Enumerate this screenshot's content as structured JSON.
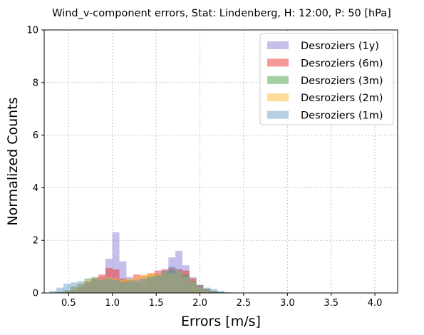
{
  "chart_data": {
    "type": "bar",
    "title": "Wind_v-component errors, Stat: Lindenberg, H: 12:00, P: 50 [hPa]",
    "xlabel": "Errors [m/s]",
    "ylabel": "Normalized Counts",
    "xlim": [
      0.22,
      4.26
    ],
    "ylim": [
      0,
      10
    ],
    "xticks": [
      "0.5",
      "1.0",
      "1.5",
      "2.0",
      "2.5",
      "3.0",
      "3.5",
      "4.0"
    ],
    "yticks": [
      "0",
      "2",
      "4",
      "6",
      "8",
      "10"
    ],
    "grid": true,
    "legend_position": "top-right",
    "bin_width": 0.08,
    "bin_starts": [
      0.28,
      0.36,
      0.44,
      0.52,
      0.6,
      0.68,
      0.76,
      0.84,
      0.92,
      1.0,
      1.08,
      1.16,
      1.24,
      1.32,
      1.4,
      1.48,
      1.56,
      1.64,
      1.72,
      1.8,
      1.88,
      1.96,
      2.04,
      2.12,
      2.2,
      2.28,
      2.36,
      2.44,
      2.52,
      2.6,
      2.68,
      2.76,
      2.84,
      2.92,
      3.0,
      3.08,
      3.16,
      3.24,
      3.32,
      3.4,
      3.48,
      3.56,
      3.64,
      3.72,
      3.8,
      3.88,
      3.96,
      4.04
    ],
    "series": [
      {
        "name": "Desroziers (1y)",
        "color": "#8b7fd9",
        "opacity": 0.5,
        "values": [
          0,
          0,
          0.05,
          0.1,
          0.2,
          0.35,
          0.5,
          0.6,
          1.3,
          2.3,
          1.2,
          0.6,
          0.4,
          0.35,
          0.5,
          0.7,
          0.85,
          1.35,
          1.6,
          1.05,
          0.6,
          0.3,
          0.15,
          0.08,
          0.03,
          0,
          0,
          0,
          0,
          0,
          0,
          0,
          0,
          0,
          0,
          0,
          0,
          0,
          0,
          0,
          0,
          0,
          0,
          0,
          0,
          0,
          0,
          0
        ]
      },
      {
        "name": "Desroziers (6m)",
        "color": "#f03030",
        "opacity": 0.5,
        "values": [
          0,
          0,
          0.05,
          0.1,
          0.25,
          0.45,
          0.55,
          0.7,
          0.95,
          0.9,
          0.55,
          0.5,
          0.7,
          0.65,
          0.75,
          0.85,
          0.9,
          0.95,
          0.9,
          0.85,
          0.55,
          0.3,
          0.15,
          0.05,
          0.02,
          0,
          0,
          0,
          0,
          0,
          0,
          0,
          0,
          0,
          0,
          0,
          0,
          0,
          0,
          0,
          0,
          0,
          0,
          0,
          0,
          0,
          0,
          0
        ]
      },
      {
        "name": "Desroziers (3m)",
        "color": "#4aa24a",
        "opacity": 0.5,
        "values": [
          0,
          0.05,
          0.1,
          0.25,
          0.35,
          0.55,
          0.6,
          0.5,
          0.55,
          0.5,
          0.45,
          0.5,
          0.4,
          0.55,
          0.65,
          0.7,
          0.8,
          0.85,
          0.8,
          0.7,
          0.45,
          0.25,
          0.15,
          0.08,
          0.03,
          0,
          0,
          0,
          0,
          0,
          0,
          0,
          0,
          0,
          0,
          0,
          0,
          0,
          0,
          0,
          0,
          0,
          0,
          0,
          0,
          0,
          0,
          0
        ]
      },
      {
        "name": "Desroziers (2m)",
        "color": "#ffb732",
        "opacity": 0.5,
        "values": [
          0,
          0.03,
          0.08,
          0.2,
          0.35,
          0.45,
          0.5,
          0.55,
          0.6,
          0.55,
          0.5,
          0.55,
          0.6,
          0.7,
          0.75,
          0.7,
          0.8,
          0.75,
          0.85,
          0.6,
          0.4,
          0.25,
          0.12,
          0.05,
          0.02,
          0,
          0,
          0,
          0,
          0,
          0,
          0,
          0,
          0,
          0,
          0,
          0,
          0,
          0,
          0,
          0,
          0,
          0,
          0,
          0,
          0,
          0,
          0
        ]
      },
      {
        "name": "Desroziers (1m)",
        "color": "#5a96bf",
        "opacity": 0.45,
        "values": [
          0.08,
          0.2,
          0.35,
          0.4,
          0.45,
          0.4,
          0.5,
          0.5,
          0.55,
          0.5,
          0.4,
          0.45,
          0.5,
          0.55,
          0.6,
          0.65,
          0.85,
          1.0,
          0.9,
          0.6,
          0.4,
          0.3,
          0.2,
          0.15,
          0.08,
          0.03,
          0,
          0,
          0,
          0,
          0,
          0,
          0,
          0,
          0,
          0,
          0,
          0,
          0,
          0,
          0,
          0,
          0,
          0,
          0,
          0,
          0,
          0
        ]
      }
    ]
  }
}
